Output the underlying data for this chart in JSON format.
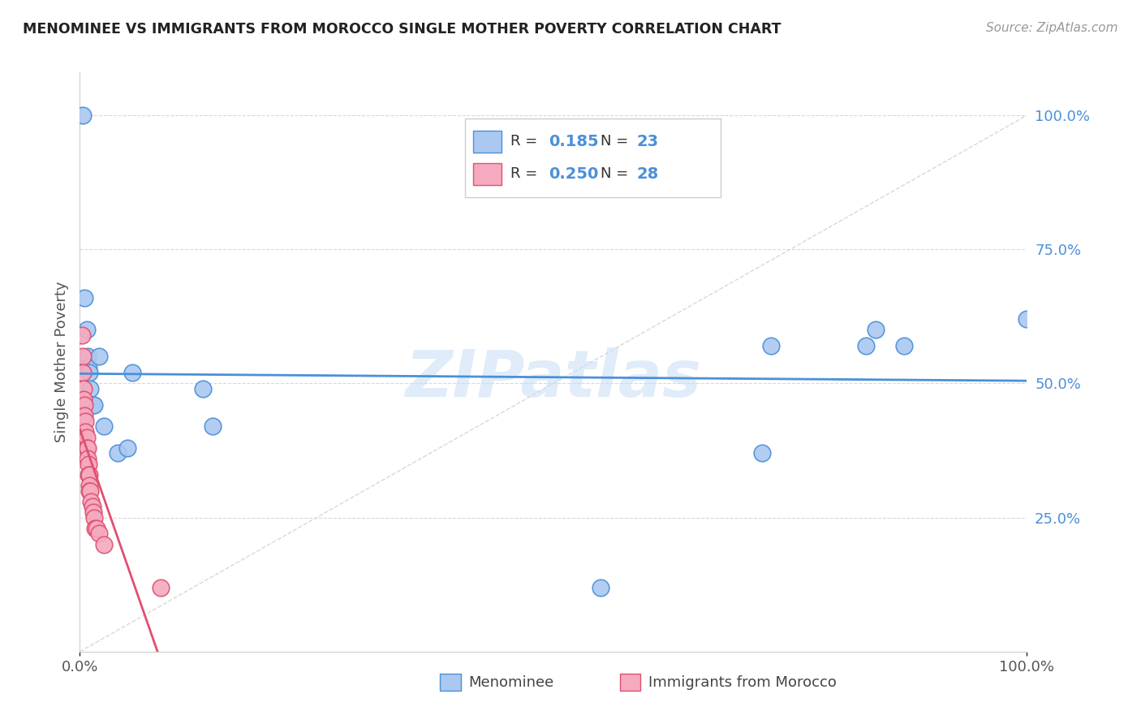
{
  "title": "MENOMINEE VS IMMIGRANTS FROM MOROCCO SINGLE MOTHER POVERTY CORRELATION CHART",
  "source": "Source: ZipAtlas.com",
  "ylabel": "Single Mother Poverty",
  "ytick_vals": [
    0.0,
    0.25,
    0.5,
    0.75,
    1.0
  ],
  "ytick_labels": [
    "",
    "25.0%",
    "50.0%",
    "75.0%",
    "100.0%"
  ],
  "legend_v1": "0.185",
  "legend_nv1": "23",
  "legend_v2": "0.250",
  "legend_nv2": "28",
  "menominee_color": "#aac8f0",
  "morocco_color": "#f5aabf",
  "trend_menominee_color": "#4a90d9",
  "trend_morocco_color": "#e05070",
  "diagonal_color": "#d8d8d8",
  "grid_color": "#d8d8d8",
  "watermark": "ZIPatlas",
  "background_color": "#ffffff",
  "menominee_x": [
    0.003,
    0.005,
    0.007,
    0.008,
    0.009,
    0.01,
    0.011,
    0.013,
    0.015,
    0.02,
    0.025,
    0.04,
    0.05,
    0.055,
    0.13,
    0.14,
    0.55,
    0.72,
    0.73,
    0.83,
    0.84,
    0.87,
    1.0
  ],
  "menominee_y": [
    1.0,
    0.66,
    0.6,
    0.55,
    0.53,
    0.52,
    0.49,
    0.46,
    0.46,
    0.55,
    0.42,
    0.37,
    0.38,
    0.52,
    0.49,
    0.42,
    0.12,
    0.37,
    0.57,
    0.57,
    0.6,
    0.57,
    0.62
  ],
  "morocco_x": [
    0.002,
    0.003,
    0.003,
    0.004,
    0.004,
    0.005,
    0.005,
    0.006,
    0.006,
    0.007,
    0.007,
    0.008,
    0.008,
    0.009,
    0.009,
    0.01,
    0.01,
    0.01,
    0.011,
    0.012,
    0.013,
    0.014,
    0.015,
    0.016,
    0.018,
    0.02,
    0.025,
    0.085
  ],
  "morocco_y": [
    0.59,
    0.55,
    0.52,
    0.49,
    0.47,
    0.46,
    0.44,
    0.43,
    0.41,
    0.4,
    0.38,
    0.38,
    0.36,
    0.35,
    0.33,
    0.33,
    0.31,
    0.3,
    0.3,
    0.28,
    0.27,
    0.26,
    0.25,
    0.23,
    0.23,
    0.22,
    0.2,
    0.12
  ]
}
